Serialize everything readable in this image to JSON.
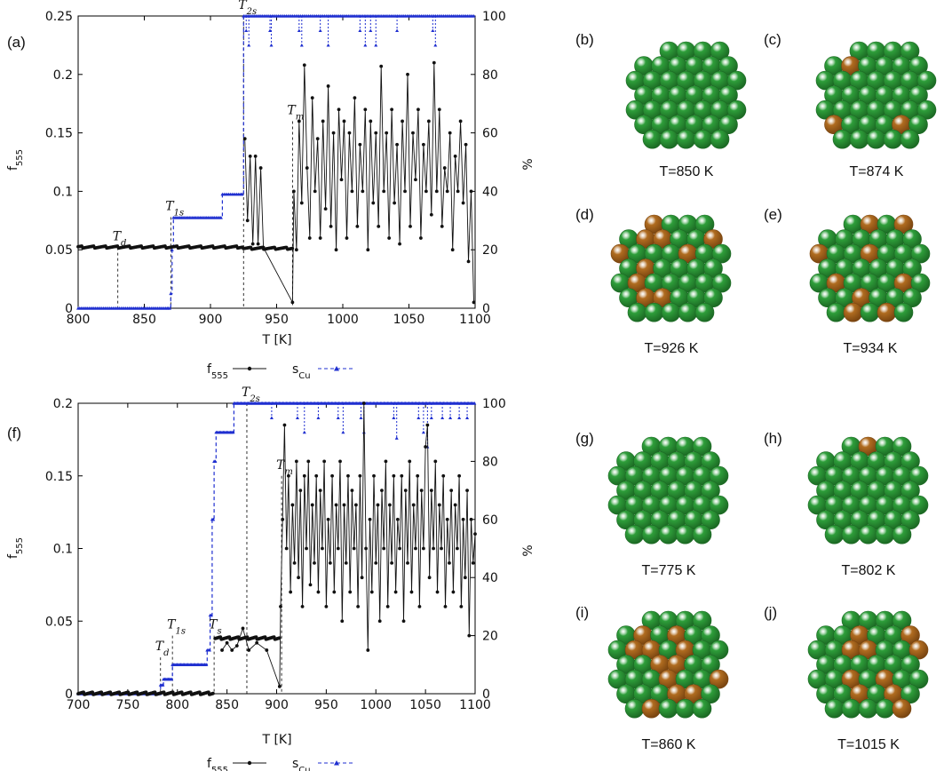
{
  "chart_data": [
    {
      "type": "line",
      "panel_label": "(a)",
      "xlabel": "T [K]",
      "ylabel_left": "f555",
      "ylabel_right": "%",
      "xlim": [
        800,
        1100
      ],
      "ylim_left": [
        0,
        0.25
      ],
      "ylim_right": [
        0,
        100
      ],
      "x_ticks": [
        "800",
        "850",
        "900",
        "950",
        "1000",
        "1050",
        "1100"
      ],
      "y_ticks_left": [
        "0",
        "0.05",
        "0.1",
        "0.15",
        "0.2",
        "0.25"
      ],
      "y_ticks_right": [
        "0",
        "20",
        "40",
        "60",
        "80",
        "100"
      ],
      "legend": {
        "f555": "f555",
        "sCu": "sCu"
      },
      "annotations": [
        {
          "text": "Td",
          "x": 830,
          "level": 0.052
        },
        {
          "text": "T1s",
          "x": 870,
          "level": 0.078
        },
        {
          "text": "T2s",
          "x": 925,
          "level": 0.25
        },
        {
          "text": "Tm",
          "x": 962,
          "level": 0.16
        }
      ],
      "f555": {
        "base_segments": [
          {
            "x0": 800,
            "x1": 925,
            "value": 0.052
          },
          {
            "x0": 925,
            "x1": 962,
            "value": 0.051
          }
        ],
        "points": [
          [
            926,
            0.145
          ],
          [
            928,
            0.075
          ],
          [
            930,
            0.13
          ],
          [
            932,
            0.055
          ],
          [
            934,
            0.13
          ],
          [
            936,
            0.055
          ],
          [
            938,
            0.12
          ],
          [
            940,
            0.052
          ],
          [
            962,
            0.005
          ],
          [
            963,
            0.1
          ],
          [
            965,
            0.05
          ],
          [
            967,
            0.16
          ],
          [
            969,
            0.09
          ],
          [
            971,
            0.208
          ],
          [
            973,
            0.12
          ],
          [
            975,
            0.06
          ],
          [
            977,
            0.18
          ],
          [
            979,
            0.1
          ],
          [
            981,
            0.145
          ],
          [
            983,
            0.06
          ],
          [
            985,
            0.16
          ],
          [
            987,
            0.085
          ],
          [
            989,
            0.19
          ],
          [
            991,
            0.07
          ],
          [
            993,
            0.15
          ],
          [
            995,
            0.05
          ],
          [
            997,
            0.17
          ],
          [
            999,
            0.11
          ],
          [
            1001,
            0.16
          ],
          [
            1003,
            0.06
          ],
          [
            1005,
            0.15
          ],
          [
            1007,
            0.1
          ],
          [
            1009,
            0.18
          ],
          [
            1011,
            0.07
          ],
          [
            1013,
            0.14
          ],
          [
            1015,
            0.1
          ],
          [
            1017,
            0.17
          ],
          [
            1019,
            0.05
          ],
          [
            1021,
            0.16
          ],
          [
            1023,
            0.09
          ],
          [
            1025,
            0.15
          ],
          [
            1027,
            0.07
          ],
          [
            1029,
            0.207
          ],
          [
            1031,
            0.1
          ],
          [
            1033,
            0.15
          ],
          [
            1035,
            0.06
          ],
          [
            1037,
            0.17
          ],
          [
            1039,
            0.09
          ],
          [
            1041,
            0.14
          ],
          [
            1043,
            0.055
          ],
          [
            1045,
            0.16
          ],
          [
            1047,
            0.1
          ],
          [
            1049,
            0.2
          ],
          [
            1051,
            0.07
          ],
          [
            1053,
            0.15
          ],
          [
            1055,
            0.11
          ],
          [
            1057,
            0.17
          ],
          [
            1059,
            0.06
          ],
          [
            1061,
            0.14
          ],
          [
            1063,
            0.1
          ],
          [
            1065,
            0.16
          ],
          [
            1067,
            0.08
          ],
          [
            1069,
            0.21
          ],
          [
            1071,
            0.1
          ],
          [
            1073,
            0.17
          ],
          [
            1075,
            0.07
          ],
          [
            1077,
            0.12
          ],
          [
            1079,
            0.1
          ],
          [
            1081,
            0.15
          ],
          [
            1083,
            0.05
          ],
          [
            1085,
            0.13
          ],
          [
            1087,
            0.1
          ],
          [
            1089,
            0.16
          ],
          [
            1091,
            0.09
          ],
          [
            1093,
            0.14
          ],
          [
            1095,
            0.04
          ],
          [
            1097,
            0.1
          ],
          [
            1099,
            0.005
          ]
        ]
      },
      "sCu": {
        "steps": [
          [
            800,
            0
          ],
          [
            868,
            0
          ],
          [
            870,
            5
          ],
          [
            871,
            20
          ],
          [
            872,
            31
          ],
          [
            908,
            31
          ],
          [
            909,
            39
          ],
          [
            924,
            39
          ],
          [
            925,
            100
          ],
          [
            1100,
            100
          ]
        ],
        "dips": [
          [
            927,
            95
          ],
          [
            929,
            90
          ],
          [
            945,
            95
          ],
          [
            946,
            90
          ],
          [
            967,
            95
          ],
          [
            969,
            90
          ],
          [
            983,
            95
          ],
          [
            989,
            90
          ],
          [
            1013,
            95
          ],
          [
            1017,
            90
          ],
          [
            1021,
            95
          ],
          [
            1025,
            90
          ],
          [
            1041,
            95
          ],
          [
            1068,
            95
          ],
          [
            1070,
            90
          ]
        ]
      }
    },
    {
      "type": "line",
      "panel_label": "(f)",
      "xlabel": "T [K]",
      "ylabel_left": "f555",
      "ylabel_right": "%",
      "xlim": [
        700,
        1100
      ],
      "ylim_left": [
        0,
        0.2
      ],
      "ylim_right": [
        0,
        100
      ],
      "x_ticks": [
        "700",
        "750",
        "800",
        "850",
        "900",
        "950",
        "1000",
        "1050",
        "1100"
      ],
      "y_ticks_left": [
        "0",
        "0.05",
        "0.1",
        "0.15",
        "0.2"
      ],
      "y_ticks_right": [
        "0",
        "20",
        "40",
        "60",
        "80",
        "100"
      ],
      "legend": {
        "f555": "f555",
        "sCu": "sCu"
      },
      "annotations": [
        {
          "text": "Td",
          "x": 783,
          "level": 0.025
        },
        {
          "text": "T1s",
          "x": 795,
          "level": 0.04
        },
        {
          "text": "Ts",
          "x": 837,
          "level": 0.04
        },
        {
          "text": "T2s",
          "x": 870,
          "level": 0.2
        },
        {
          "text": "Tm",
          "x": 905,
          "level": 0.15
        }
      ],
      "f555": {
        "base_segments": [
          {
            "x0": 700,
            "x1": 836,
            "value": 0.0
          },
          {
            "x0": 838,
            "x1": 903,
            "value": 0.038
          }
        ],
        "points": [
          [
            845,
            0.03
          ],
          [
            850,
            0.035
          ],
          [
            855,
            0.03
          ],
          [
            860,
            0.033
          ],
          [
            866,
            0.045
          ],
          [
            872,
            0.03
          ],
          [
            880,
            0.035
          ],
          [
            890,
            0.03
          ],
          [
            903,
            0.005
          ],
          [
            904,
            0.06
          ],
          [
            906,
            0.12
          ],
          [
            908,
            0.185
          ],
          [
            910,
            0.1
          ],
          [
            912,
            0.15
          ],
          [
            914,
            0.07
          ],
          [
            916,
            0.13
          ],
          [
            918,
            0.09
          ],
          [
            920,
            0.16
          ],
          [
            922,
            0.08
          ],
          [
            924,
            0.14
          ],
          [
            926,
            0.06
          ],
          [
            928,
            0.15
          ],
          [
            930,
            0.1
          ],
          [
            932,
            0.16
          ],
          [
            934,
            0.075
          ],
          [
            936,
            0.13
          ],
          [
            938,
            0.09
          ],
          [
            940,
            0.15
          ],
          [
            942,
            0.07
          ],
          [
            944,
            0.14
          ],
          [
            946,
            0.1
          ],
          [
            948,
            0.16
          ],
          [
            950,
            0.06
          ],
          [
            952,
            0.12
          ],
          [
            954,
            0.09
          ],
          [
            956,
            0.15
          ],
          [
            958,
            0.07
          ],
          [
            960,
            0.13
          ],
          [
            962,
            0.1
          ],
          [
            964,
            0.16
          ],
          [
            966,
            0.05
          ],
          [
            968,
            0.13
          ],
          [
            970,
            0.09
          ],
          [
            972,
            0.15
          ],
          [
            974,
            0.07
          ],
          [
            976,
            0.14
          ],
          [
            978,
            0.1
          ],
          [
            980,
            0.13
          ],
          [
            982,
            0.06
          ],
          [
            984,
            0.15
          ],
          [
            986,
            0.08
          ],
          [
            988,
            0.2
          ],
          [
            990,
            0.1
          ],
          [
            992,
            0.03
          ],
          [
            994,
            0.12
          ],
          [
            996,
            0.07
          ],
          [
            998,
            0.15
          ],
          [
            1000,
            0.09
          ],
          [
            1002,
            0.13
          ],
          [
            1004,
            0.05
          ],
          [
            1006,
            0.14
          ],
          [
            1008,
            0.1
          ],
          [
            1010,
            0.16
          ],
          [
            1012,
            0.06
          ],
          [
            1014,
            0.13
          ],
          [
            1016,
            0.09
          ],
          [
            1018,
            0.15
          ],
          [
            1020,
            0.07
          ],
          [
            1022,
            0.12
          ],
          [
            1024,
            0.1
          ],
          [
            1026,
            0.15
          ],
          [
            1028,
            0.05
          ],
          [
            1030,
            0.14
          ],
          [
            1032,
            0.09
          ],
          [
            1034,
            0.16
          ],
          [
            1036,
            0.07
          ],
          [
            1038,
            0.13
          ],
          [
            1040,
            0.1
          ],
          [
            1042,
            0.15
          ],
          [
            1044,
            0.06
          ],
          [
            1046,
            0.14
          ],
          [
            1048,
            0.1
          ],
          [
            1050,
            0.17
          ],
          [
            1052,
            0.185
          ],
          [
            1054,
            0.08
          ],
          [
            1056,
            0.14
          ],
          [
            1058,
            0.1
          ],
          [
            1060,
            0.16
          ],
          [
            1062,
            0.07
          ],
          [
            1064,
            0.13
          ],
          [
            1066,
            0.1
          ],
          [
            1068,
            0.15
          ],
          [
            1070,
            0.06
          ],
          [
            1072,
            0.12
          ],
          [
            1074,
            0.09
          ],
          [
            1076,
            0.14
          ],
          [
            1078,
            0.07
          ],
          [
            1080,
            0.13
          ],
          [
            1082,
            0.1
          ],
          [
            1084,
            0.15
          ],
          [
            1086,
            0.06
          ],
          [
            1088,
            0.12
          ],
          [
            1090,
            0.08
          ],
          [
            1092,
            0.14
          ],
          [
            1094,
            0.04
          ],
          [
            1096,
            0.12
          ],
          [
            1098,
            0.09
          ],
          [
            1100,
            0.11
          ]
        ]
      },
      "sCu": {
        "steps": [
          [
            700,
            0
          ],
          [
            780,
            0
          ],
          [
            783,
            3
          ],
          [
            786,
            5
          ],
          [
            793,
            5
          ],
          [
            795,
            10
          ],
          [
            828,
            10
          ],
          [
            830,
            15
          ],
          [
            833,
            27
          ],
          [
            835,
            60
          ],
          [
            837,
            80
          ],
          [
            839,
            90
          ],
          [
            855,
            90
          ],
          [
            857,
            100
          ],
          [
            1100,
            100
          ]
        ],
        "dips": [
          [
            895,
            95
          ],
          [
            921,
            95
          ],
          [
            928,
            90
          ],
          [
            942,
            95
          ],
          [
            962,
            95
          ],
          [
            967,
            90
          ],
          [
            985,
            95
          ],
          [
            988,
            90
          ],
          [
            1018,
            95
          ],
          [
            1021,
            88
          ],
          [
            1043,
            95
          ],
          [
            1048,
            90
          ],
          [
            1052,
            85
          ],
          [
            1056,
            95
          ],
          [
            1067,
            95
          ],
          [
            1075,
            95
          ],
          [
            1084,
            95
          ],
          [
            1092,
            95
          ]
        ]
      }
    }
  ],
  "images": [
    {
      "id": "b",
      "label": "(b)",
      "caption": "T=850 K",
      "cu_atoms": 0
    },
    {
      "id": "c",
      "label": "(c)",
      "caption": "T=874 K",
      "cu_atoms": 3
    },
    {
      "id": "d",
      "label": "(d)",
      "caption": "T=926 K",
      "cu_atoms": 10
    },
    {
      "id": "e",
      "label": "(e)",
      "caption": "T=934 K",
      "cu_atoms": 9
    },
    {
      "id": "g",
      "label": "(g)",
      "caption": "T=775 K",
      "cu_atoms": 0
    },
    {
      "id": "h",
      "label": "(h)",
      "caption": "T=802 K",
      "cu_atoms": 1
    },
    {
      "id": "i",
      "label": "(i)",
      "caption": "T=860 K",
      "cu_atoms": 12
    },
    {
      "id": "j",
      "label": "(j)",
      "caption": "T=1015 K",
      "cu_atoms": 10
    }
  ],
  "colors": {
    "f555": "#111111",
    "sCu": "#1f2fd0",
    "green_atom": "#2e9e3a",
    "green_dark": "#1c6a24",
    "cu_atom": "#b06c20",
    "cu_dark": "#7a4510"
  }
}
